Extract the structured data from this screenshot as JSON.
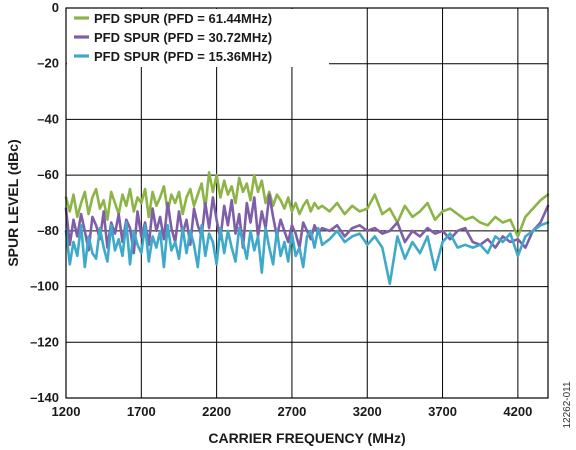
{
  "chart_data": {
    "type": "line",
    "title": "",
    "xlabel": "CARRIER FREQUENCY (MHz)",
    "ylabel": "SPUR LEVEL (dBc)",
    "xlim": [
      1200,
      4400
    ],
    "ylim": [
      -140,
      0
    ],
    "xticks": [
      "1200",
      "1700",
      "2200",
      "2700",
      "3200",
      "3700",
      "4200"
    ],
    "yticks": [
      "0",
      "–20",
      "–40",
      "–60",
      "–80",
      "–100",
      "–120",
      "–140"
    ],
    "grid": true,
    "legend_position": "top-left",
    "series": [
      {
        "name": "PFD SPUR (PFD = 61.44MHz)",
        "color": "#8db446",
        "x": [
          1200,
          1225,
          1250,
          1275,
          1300,
          1325,
          1350,
          1375,
          1400,
          1425,
          1450,
          1475,
          1500,
          1525,
          1550,
          1575,
          1600,
          1625,
          1650,
          1675,
          1700,
          1725,
          1750,
          1775,
          1800,
          1825,
          1850,
          1875,
          1900,
          1925,
          1950,
          1975,
          2000,
          2025,
          2050,
          2075,
          2100,
          2125,
          2150,
          2175,
          2200,
          2225,
          2250,
          2275,
          2300,
          2325,
          2350,
          2375,
          2400,
          2425,
          2450,
          2475,
          2500,
          2525,
          2550,
          2575,
          2600,
          2625,
          2650,
          2675,
          2700,
          2725,
          2750,
          2775,
          2800,
          2825,
          2850,
          2875,
          2900,
          2950,
          3000,
          3050,
          3100,
          3150,
          3200,
          3250,
          3300,
          3350,
          3400,
          3450,
          3500,
          3550,
          3600,
          3650,
          3700,
          3750,
          3800,
          3850,
          3900,
          3950,
          4000,
          4050,
          4100,
          4150,
          4200,
          4250,
          4300,
          4350,
          4400
        ],
        "values": [
          -68,
          -73,
          -67,
          -75,
          -70,
          -66,
          -74,
          -68,
          -65,
          -72,
          -69,
          -76,
          -66,
          -70,
          -74,
          -67,
          -71,
          -65,
          -73,
          -68,
          -70,
          -65,
          -75,
          -66,
          -71,
          -68,
          -64,
          -73,
          -67,
          -70,
          -66,
          -74,
          -68,
          -65,
          -71,
          -67,
          -63,
          -72,
          -59,
          -66,
          -60,
          -68,
          -62,
          -67,
          -64,
          -70,
          -61,
          -66,
          -63,
          -69,
          -60,
          -66,
          -62,
          -70,
          -66,
          -71,
          -67,
          -69,
          -72,
          -68,
          -73,
          -70,
          -74,
          -71,
          -69,
          -73,
          -70,
          -72,
          -71,
          -73,
          -70,
          -74,
          -71,
          -73,
          -72,
          -67,
          -74,
          -72,
          -77,
          -71,
          -75,
          -73,
          -70,
          -76,
          -73,
          -72,
          -74,
          -76,
          -75,
          -77,
          -78,
          -75,
          -77,
          -76,
          -82,
          -75,
          -72,
          -69,
          -67
        ]
      },
      {
        "name": "PFD SPUR (PFD = 30.72MHz)",
        "color": "#7f5ea8",
        "x": [
          1200,
          1225,
          1250,
          1275,
          1300,
          1325,
          1350,
          1375,
          1400,
          1425,
          1450,
          1475,
          1500,
          1525,
          1550,
          1575,
          1600,
          1625,
          1650,
          1675,
          1700,
          1725,
          1750,
          1775,
          1800,
          1825,
          1850,
          1875,
          1900,
          1925,
          1950,
          1975,
          2000,
          2025,
          2050,
          2075,
          2100,
          2125,
          2150,
          2175,
          2200,
          2225,
          2250,
          2275,
          2300,
          2325,
          2350,
          2375,
          2400,
          2425,
          2450,
          2475,
          2500,
          2525,
          2550,
          2575,
          2600,
          2625,
          2650,
          2675,
          2700,
          2725,
          2750,
          2775,
          2800,
          2825,
          2850,
          2875,
          2900,
          2950,
          3000,
          3050,
          3100,
          3150,
          3200,
          3250,
          3300,
          3350,
          3400,
          3450,
          3500,
          3550,
          3600,
          3650,
          3700,
          3750,
          3800,
          3850,
          3900,
          3950,
          4000,
          4050,
          4100,
          4150,
          4200,
          4250,
          4300,
          4350,
          4400
        ],
        "values": [
          -72,
          -85,
          -76,
          -82,
          -74,
          -80,
          -87,
          -75,
          -78,
          -83,
          -73,
          -86,
          -77,
          -81,
          -74,
          -84,
          -76,
          -79,
          -88,
          -73,
          -82,
          -77,
          -85,
          -72,
          -80,
          -75,
          -83,
          -70,
          -79,
          -84,
          -73,
          -81,
          -76,
          -85,
          -72,
          -78,
          -82,
          -70,
          -79,
          -68,
          -76,
          -83,
          -71,
          -78,
          -69,
          -81,
          -74,
          -86,
          -70,
          -77,
          -68,
          -82,
          -73,
          -79,
          -67,
          -75,
          -82,
          -76,
          -80,
          -84,
          -78,
          -81,
          -86,
          -77,
          -80,
          -83,
          -78,
          -81,
          -79,
          -80,
          -78,
          -82,
          -79,
          -78,
          -80,
          -79,
          -81,
          -80,
          -77,
          -84,
          -80,
          -82,
          -79,
          -81,
          -80,
          -83,
          -80,
          -79,
          -84,
          -85,
          -83,
          -86,
          -82,
          -84,
          -83,
          -86,
          -80,
          -77,
          -71
        ]
      },
      {
        "name": "PFD SPUR (PFD = 15.36MHz)",
        "color": "#3fa9c9",
        "x": [
          1200,
          1225,
          1250,
          1275,
          1300,
          1325,
          1350,
          1375,
          1400,
          1425,
          1450,
          1475,
          1500,
          1525,
          1550,
          1575,
          1600,
          1625,
          1650,
          1675,
          1700,
          1725,
          1750,
          1775,
          1800,
          1825,
          1850,
          1875,
          1900,
          1925,
          1950,
          1975,
          2000,
          2025,
          2050,
          2075,
          2100,
          2125,
          2150,
          2175,
          2200,
          2225,
          2250,
          2275,
          2300,
          2325,
          2350,
          2375,
          2400,
          2425,
          2450,
          2475,
          2500,
          2525,
          2550,
          2575,
          2600,
          2625,
          2650,
          2675,
          2700,
          2725,
          2750,
          2775,
          2800,
          2825,
          2850,
          2875,
          2900,
          2950,
          3000,
          3050,
          3100,
          3150,
          3200,
          3250,
          3300,
          3350,
          3400,
          3450,
          3500,
          3550,
          3600,
          3650,
          3700,
          3750,
          3800,
          3850,
          3900,
          3950,
          4000,
          4050,
          4100,
          4150,
          4200,
          4250,
          4300,
          4350,
          4400
        ],
        "values": [
          -80,
          -92,
          -84,
          -89,
          -78,
          -93,
          -82,
          -88,
          -90,
          -79,
          -86,
          -91,
          -78,
          -87,
          -83,
          -89,
          -77,
          -92,
          -80,
          -85,
          -88,
          -78,
          -91,
          -82,
          -86,
          -80,
          -93,
          -78,
          -87,
          -84,
          -90,
          -79,
          -88,
          -80,
          -85,
          -93,
          -78,
          -89,
          -81,
          -84,
          -92,
          -79,
          -88,
          -80,
          -86,
          -91,
          -79,
          -84,
          -90,
          -80,
          -87,
          -82,
          -95,
          -79,
          -86,
          -92,
          -80,
          -89,
          -84,
          -91,
          -81,
          -89,
          -86,
          -93,
          -82,
          -80,
          -86,
          -79,
          -85,
          -83,
          -80,
          -84,
          -82,
          -81,
          -85,
          -82,
          -86,
          -99,
          -82,
          -90,
          -84,
          -88,
          -82,
          -94,
          -84,
          -81,
          -86,
          -85,
          -86,
          -85,
          -88,
          -82,
          -84,
          -81,
          -89,
          -82,
          -80,
          -78,
          -77
        ]
      }
    ]
  },
  "figure_id": "12262-011"
}
